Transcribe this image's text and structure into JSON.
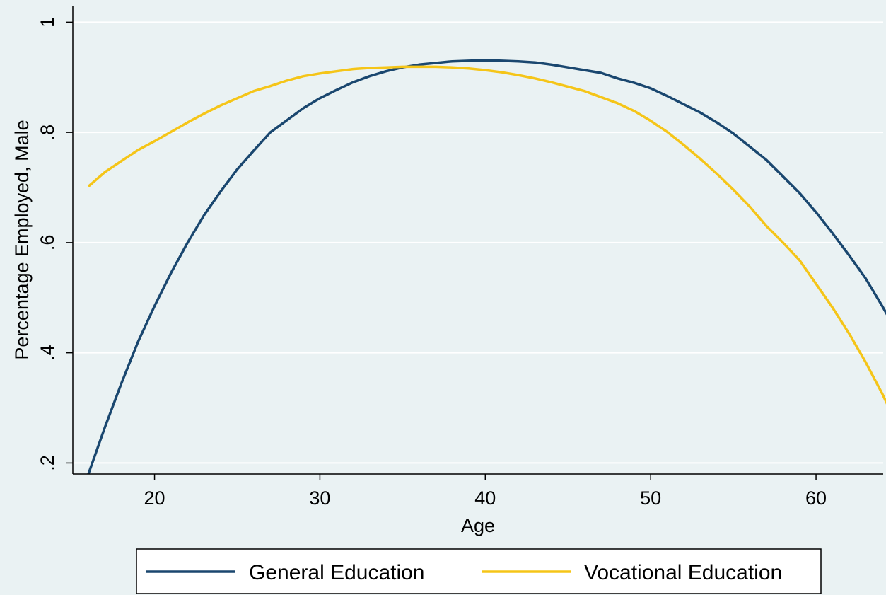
{
  "chart_data": {
    "type": "line",
    "title": "",
    "xlabel": "Age",
    "ylabel": "Percentage Employed, Male",
    "xlim": [
      16,
      65
    ],
    "ylim": [
      0.18,
      1.03
    ],
    "xticks": [
      20,
      30,
      40,
      50,
      60
    ],
    "xtick_labels": [
      "20",
      "30",
      "40",
      "50",
      "60"
    ],
    "yticks": [
      0.2,
      0.4,
      0.6,
      0.8,
      1.0
    ],
    "ytick_labels": [
      ".2",
      ".4",
      ".6",
      ".8",
      "1"
    ],
    "grid": "horizontal",
    "legend_position": "bottom",
    "x": [
      16,
      17,
      18,
      19,
      20,
      21,
      22,
      23,
      24,
      25,
      26,
      27,
      28,
      29,
      30,
      31,
      32,
      33,
      34,
      35,
      36,
      37,
      38,
      39,
      40,
      41,
      42,
      43,
      44,
      45,
      46,
      47,
      48,
      49,
      50,
      51,
      52,
      53,
      54,
      55,
      56,
      57,
      58,
      59,
      60,
      61,
      62,
      63,
      64,
      65
    ],
    "series": [
      {
        "name": "General Education",
        "color": "#1a476f",
        "values": [
          0.18,
          0.265,
          0.345,
          0.42,
          0.485,
          0.545,
          0.6,
          0.65,
          0.693,
          0.733,
          0.767,
          0.8,
          0.822,
          0.844,
          0.862,
          0.877,
          0.891,
          0.902,
          0.911,
          0.918,
          0.923,
          0.926,
          0.929,
          0.93,
          0.931,
          0.93,
          0.929,
          0.927,
          0.923,
          0.918,
          0.913,
          0.908,
          0.898,
          0.89,
          0.88,
          0.866,
          0.851,
          0.836,
          0.818,
          0.798,
          0.774,
          0.75,
          0.72,
          0.69,
          0.655,
          0.617,
          0.577,
          0.535,
          0.485,
          0.432
        ]
      },
      {
        "name": "Vocational Education",
        "color": "#f5c518",
        "values": [
          0.702,
          0.728,
          0.748,
          0.768,
          0.784,
          0.801,
          0.818,
          0.834,
          0.849,
          0.862,
          0.875,
          0.884,
          0.894,
          0.902,
          0.907,
          0.911,
          0.915,
          0.917,
          0.918,
          0.919,
          0.919,
          0.919,
          0.918,
          0.916,
          0.913,
          0.909,
          0.904,
          0.898,
          0.891,
          0.883,
          0.875,
          0.864,
          0.853,
          0.839,
          0.821,
          0.801,
          0.777,
          0.752,
          0.725,
          0.696,
          0.665,
          0.63,
          0.6,
          0.568,
          0.525,
          0.482,
          0.435,
          0.383,
          0.326,
          0.263
        ]
      }
    ]
  }
}
